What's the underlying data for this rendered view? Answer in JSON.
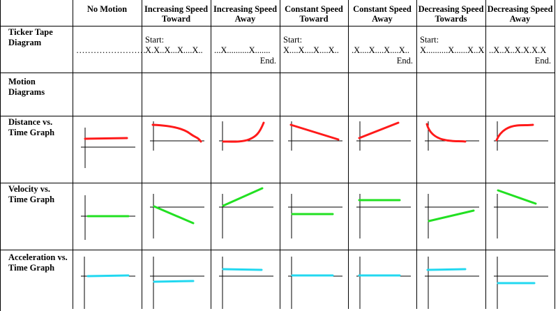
{
  "columns": [
    "No Motion",
    "Increasing Speed Toward",
    "Increasing Speed Away",
    "Constant Speed Toward",
    "Constant Speed Away",
    "Decreasing Speed Towards",
    "Decreasing Speed Away"
  ],
  "rows": [
    "Ticker Tape Diagram",
    "Motion Diagrams",
    "Distance vs. Time Graph",
    "Velocity vs. Time Graph",
    "Acceleration vs. Time Graph"
  ],
  "ticker": [
    {
      "start": "",
      "tape": "……………………",
      "end": ""
    },
    {
      "start": "Start:",
      "tape": "X.X..X...X....X..",
      "end": ""
    },
    {
      "start": "",
      "tape": "...X..........X.......",
      "end": "End."
    },
    {
      "start": "Start:",
      "tape": "X....X....X....X..",
      "end": ""
    },
    {
      "start": "",
      "tape": ".X....X....X....X..",
      "end": "End."
    },
    {
      "start": "Start:",
      "tape": "X..........X......X..X",
      "end": ""
    },
    {
      "start": "",
      "tape": "..X..X..X.X.X.X",
      "end": "End."
    }
  ],
  "colors": {
    "distance": "#ff1a1a",
    "velocity": "#22e022",
    "acceleration": "#22d8f0",
    "grid": "#000000"
  }
}
